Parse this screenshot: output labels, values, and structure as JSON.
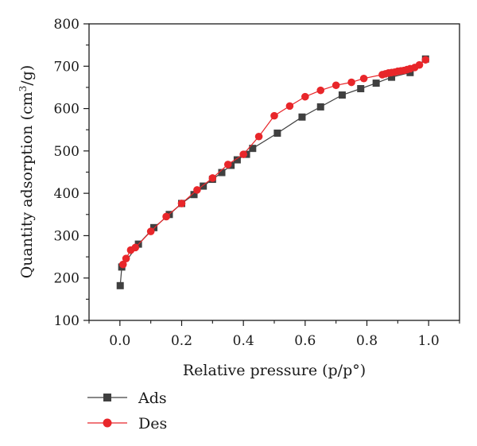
{
  "chart_data": {
    "type": "line",
    "xlabel": "Relative pressure (p/p°)",
    "ylabel_main": "Quantity adsorption (cm",
    "ylabel_sup": "3",
    "ylabel_tail": "/g)",
    "xlim": [
      -0.1,
      1.1
    ],
    "ylim": [
      100,
      800
    ],
    "xticks": [
      0.0,
      0.2,
      0.4,
      0.6,
      0.8,
      1.0
    ],
    "xtick_labels": [
      "0.0",
      "0.2",
      "0.4",
      "0.6",
      "0.8",
      "1.0"
    ],
    "yticks": [
      100,
      200,
      300,
      400,
      500,
      600,
      700,
      800
    ],
    "ytick_labels": [
      "100",
      "200",
      "300",
      "400",
      "500",
      "600",
      "700",
      "800"
    ],
    "grid": false,
    "legend_position": "bottom-left-outside",
    "series": [
      {
        "name": "Ads",
        "marker": "square",
        "color": "#404040",
        "points": [
          [
            0.001,
            182
          ],
          [
            0.006,
            226
          ],
          [
            0.06,
            280
          ],
          [
            0.11,
            319
          ],
          [
            0.16,
            350
          ],
          [
            0.2,
            376
          ],
          [
            0.24,
            397
          ],
          [
            0.27,
            417
          ],
          [
            0.3,
            433
          ],
          [
            0.33,
            449
          ],
          [
            0.36,
            466
          ],
          [
            0.38,
            479
          ],
          [
            0.41,
            492
          ],
          [
            0.43,
            506
          ],
          [
            0.51,
            542
          ],
          [
            0.59,
            580
          ],
          [
            0.65,
            604
          ],
          [
            0.72,
            632
          ],
          [
            0.78,
            647
          ],
          [
            0.83,
            660
          ],
          [
            0.88,
            674
          ],
          [
            0.94,
            685
          ],
          [
            0.99,
            717
          ]
        ]
      },
      {
        "name": "Des",
        "marker": "circle",
        "color": "#e8262a",
        "points": [
          [
            0.99,
            715
          ],
          [
            0.97,
            703
          ],
          [
            0.955,
            697
          ],
          [
            0.94,
            694
          ],
          [
            0.93,
            692
          ],
          [
            0.92,
            690
          ],
          [
            0.91,
            689
          ],
          [
            0.9,
            688
          ],
          [
            0.89,
            686
          ],
          [
            0.88,
            685
          ],
          [
            0.87,
            684
          ],
          [
            0.86,
            682
          ],
          [
            0.85,
            680
          ],
          [
            0.79,
            671
          ],
          [
            0.75,
            662
          ],
          [
            0.7,
            655
          ],
          [
            0.65,
            643
          ],
          [
            0.6,
            628
          ],
          [
            0.55,
            606
          ],
          [
            0.5,
            583
          ],
          [
            0.45,
            534
          ],
          [
            0.4,
            492
          ],
          [
            0.35,
            468
          ],
          [
            0.3,
            436
          ],
          [
            0.25,
            408
          ],
          [
            0.2,
            376
          ],
          [
            0.15,
            345
          ],
          [
            0.1,
            310
          ],
          [
            0.05,
            272
          ],
          [
            0.035,
            266
          ],
          [
            0.02,
            246
          ],
          [
            0.01,
            232
          ]
        ]
      }
    ]
  }
}
